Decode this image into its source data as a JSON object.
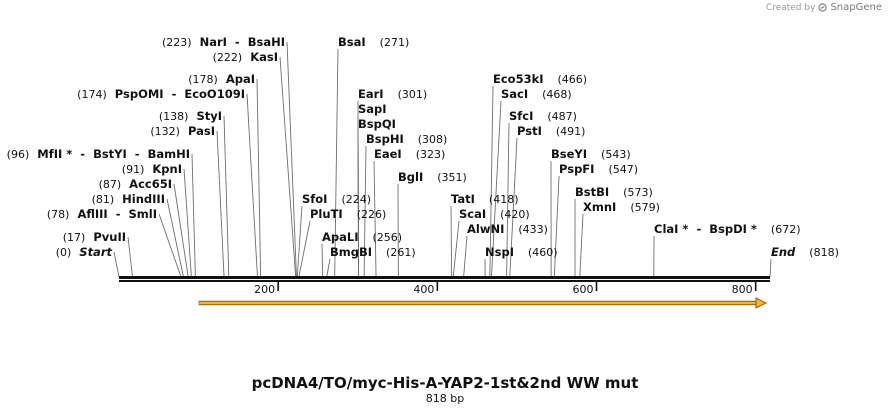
{
  "branding": {
    "created_by": "Created by",
    "product": "SnapGene"
  },
  "map": {
    "title": "pcDNA4/TO/myc-His-A-YAP2-1st&2nd WW mut",
    "length_label": "818 bp",
    "length_bp": 818,
    "ticks": [
      {
        "bp": 200,
        "label": "200"
      },
      {
        "bp": 400,
        "label": "400"
      },
      {
        "bp": 600,
        "label": "600"
      },
      {
        "bp": 800,
        "label": "800"
      }
    ],
    "feature": {
      "name": "orf-arrow",
      "start": 95,
      "end": 818,
      "color": "#f7b32b",
      "outline": "#8a5a10"
    }
  },
  "chart_data": {
    "type": "restriction-map",
    "sequence_length": 818,
    "sites": [
      {
        "name": "Start",
        "position": 0,
        "pos_label": "(0)",
        "italic": true
      },
      {
        "name": "PvuII",
        "position": 17,
        "pos_label": "(17)"
      },
      {
        "name": "AflIII  -  SmlI",
        "position": 78,
        "pos_label": "(78)"
      },
      {
        "name": "HindIII",
        "position": 81,
        "pos_label": "(81)"
      },
      {
        "name": "Acc65I",
        "position": 87,
        "pos_label": "(87)"
      },
      {
        "name": "KpnI",
        "position": 91,
        "pos_label": "(91)"
      },
      {
        "name": "MfII *  -  BstYI  -  BamHI",
        "position": 96,
        "pos_label": "(96)"
      },
      {
        "name": "PasI",
        "position": 132,
        "pos_label": "(132)"
      },
      {
        "name": "StyI",
        "position": 138,
        "pos_label": "(138)"
      },
      {
        "name": "PspOMI  -  EcoO109I",
        "position": 174,
        "pos_label": "(174)"
      },
      {
        "name": "ApaI",
        "position": 178,
        "pos_label": "(178)"
      },
      {
        "name": "KasI",
        "position": 222,
        "pos_label": "(222)"
      },
      {
        "name": "NarI  -  BsaHI",
        "position": 223,
        "pos_label": "(223)"
      },
      {
        "name": "BsaI",
        "position": 271,
        "pos_label": "(271)"
      },
      {
        "name": "SfoI",
        "position": 224,
        "pos_label": "(224)"
      },
      {
        "name": "PluTI",
        "position": 226,
        "pos_label": "(226)"
      },
      {
        "name": "ApaLI",
        "position": 256,
        "pos_label": "(256)"
      },
      {
        "name": "BmgBI",
        "position": 261,
        "pos_label": "(261)"
      },
      {
        "name": "EarI",
        "position": 301,
        "pos_label": "(301)"
      },
      {
        "name": "SapI",
        "position": 301,
        "pos_label": ""
      },
      {
        "name": "BspQI",
        "position": 301,
        "pos_label": ""
      },
      {
        "name": "BspHI",
        "position": 308,
        "pos_label": "(308)"
      },
      {
        "name": "EaeI",
        "position": 323,
        "pos_label": "(323)"
      },
      {
        "name": "BglI",
        "position": 351,
        "pos_label": "(351)"
      },
      {
        "name": "TatI",
        "position": 418,
        "pos_label": "(418)"
      },
      {
        "name": "ScaI",
        "position": 420,
        "pos_label": "(420)"
      },
      {
        "name": "AlwNI",
        "position": 433,
        "pos_label": "(433)"
      },
      {
        "name": "NspI",
        "position": 460,
        "pos_label": "(460)"
      },
      {
        "name": "Eco53kI",
        "position": 466,
        "pos_label": "(466)"
      },
      {
        "name": "SacI",
        "position": 468,
        "pos_label": "(468)"
      },
      {
        "name": "SfcI",
        "position": 487,
        "pos_label": "(487)"
      },
      {
        "name": "PstI",
        "position": 491,
        "pos_label": "(491)"
      },
      {
        "name": "BseYI",
        "position": 543,
        "pos_label": "(543)"
      },
      {
        "name": "PspFI",
        "position": 547,
        "pos_label": "(547)"
      },
      {
        "name": "BstBI",
        "position": 573,
        "pos_label": "(573)"
      },
      {
        "name": "XmnI",
        "position": 579,
        "pos_label": "(579)"
      },
      {
        "name": "ClaI *  -  BspDI *",
        "position": 672,
        "pos_label": "(672)"
      },
      {
        "name": "End",
        "position": 818,
        "pos_label": "(818)",
        "italic": true
      }
    ]
  }
}
